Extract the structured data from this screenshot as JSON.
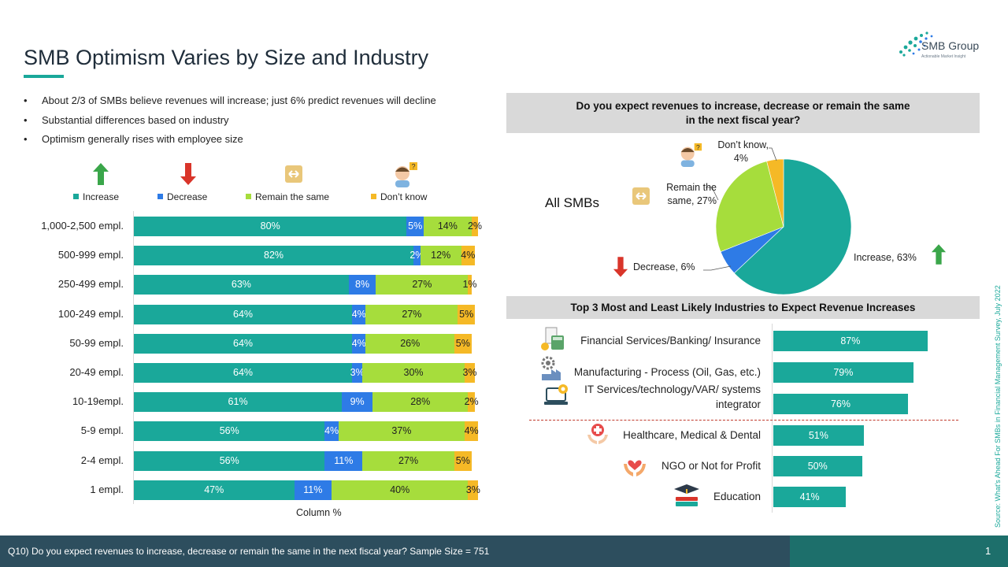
{
  "slide": {
    "title": "SMB Optimism Varies by Size and Industry",
    "logo_name": "SMB Group",
    "logo_tagline": "Actionable Market Insight",
    "bullets": [
      "About 2/3 of SMBs believe revenues will increase; just 6% predict revenues will decline",
      "Substantial differences based on industry",
      "Optimism generally rises with employee size"
    ],
    "source": "Source: What's Ahead For SMBs in Financial Management Survey, July 2022",
    "footer": "Q10) Do you expect revenues to increase, decrease or remain the same in the next fiscal year? Sample Size = 751",
    "page_number": "1"
  },
  "colors": {
    "increase": "#1aa89a",
    "decrease": "#2e7be6",
    "same": "#a6dd3c",
    "dont_know": "#f5b926",
    "accent": "#1aa89a"
  },
  "chart_data": [
    {
      "type": "bar",
      "orientation": "horizontal",
      "stacked": true,
      "xlabel": "Column %",
      "categories": [
        "1,000-2,500 empl.",
        "500-999 empl.",
        "250-499 empl.",
        "100-249 empl.",
        "50-99 empl.",
        "20-49 empl.",
        "10-19empl.",
        "5-9 empl.",
        "2-4 empl.",
        "1 empl."
      ],
      "series": [
        {
          "name": "Increase",
          "color": "#1aa89a",
          "values": [
            80,
            82,
            63,
            64,
            64,
            64,
            61,
            56,
            56,
            47
          ]
        },
        {
          "name": "Decrease",
          "color": "#2e7be6",
          "values": [
            5,
            2,
            8,
            4,
            4,
            3,
            9,
            4,
            11,
            11
          ]
        },
        {
          "name": "Remain the same",
          "color": "#a6dd3c",
          "values": [
            14,
            12,
            27,
            27,
            26,
            30,
            28,
            37,
            27,
            40
          ]
        },
        {
          "name": "Don’t know",
          "color": "#f5b926",
          "values": [
            2,
            4,
            1,
            5,
            5,
            3,
            2,
            4,
            5,
            3
          ]
        }
      ],
      "legend": "top"
    },
    {
      "type": "pie",
      "title": "Do you expect revenues to increase, decrease or remain the same in the next fiscal year?",
      "subtitle": "All SMBs",
      "slices": [
        {
          "label": "Increase",
          "value": 63,
          "color": "#1aa89a",
          "text": "Increase, 63%"
        },
        {
          "label": "Decrease",
          "value": 6,
          "color": "#2e7be6",
          "text": "Decrease, 6%"
        },
        {
          "label": "Remain the same",
          "value": 27,
          "color": "#a6dd3c",
          "text_line1": "Remain the",
          "text_line2": "same, 27%"
        },
        {
          "label": "Don’t know",
          "value": 4,
          "color": "#f5b926",
          "text_line1": "Don’t know,",
          "text_line2": "4%"
        }
      ]
    },
    {
      "type": "bar",
      "orientation": "horizontal",
      "title": "Top 3 Most and Least Likely Industries to Expect Revenue Increases",
      "categories": [
        "Financial Services/Banking/ Insurance",
        "Manufacturing - Process (Oil, Gas, etc.)",
        "IT Services/technology/VAR/ systems integrator",
        "Healthcare, Medical & Dental",
        "NGO or Not for Profit",
        "Education"
      ],
      "category_lines": [
        [
          "Financial Services/Banking/ Insurance"
        ],
        [
          "Manufacturing - Process (Oil, Gas, etc.)"
        ],
        [
          "IT Services/technology/VAR/ systems",
          "integrator"
        ],
        [
          "Healthcare, Medical & Dental"
        ],
        [
          "NGO or Not for Profit"
        ],
        [
          "Education"
        ]
      ],
      "values": [
        87,
        79,
        76,
        51,
        50,
        41
      ],
      "labels": [
        "87%",
        "79%",
        "76%",
        "51%",
        "50%",
        "41%"
      ],
      "color": "#1aa89a"
    }
  ]
}
